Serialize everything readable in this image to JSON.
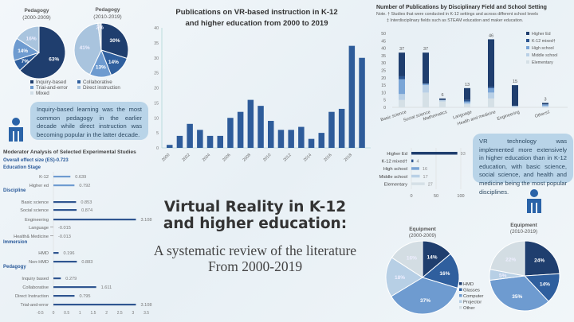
{
  "pedagogy": {
    "pie1": {
      "title": "Pedagogy",
      "period": "(2000-2009)",
      "values": [
        63,
        7,
        14,
        16,
        0
      ],
      "labels": [
        "63%",
        "7%",
        "14%",
        "16%",
        ""
      ]
    },
    "pie2": {
      "title": "Pedagogy",
      "period": "(2010-2019)",
      "values": [
        30,
        14,
        13,
        41,
        2
      ],
      "labels": [
        "30%",
        "14%",
        "13%",
        "41%",
        "2%"
      ]
    },
    "legend": [
      "Inquiry-based",
      "Collaborative",
      "Trial-and-error",
      "Direct instruction",
      "Mixed"
    ],
    "colors": [
      "#1f3e6e",
      "#2f5f9e",
      "#6e9bd0",
      "#a9c4de",
      "#d1dde6"
    ],
    "callout": "Inquiry-based learning was the most common pedagogy in the earlier decade while direct instruction was becoming popular in the latter decade."
  },
  "chart_data": [
    {
      "type": "bar",
      "title": "Publications on VR-based instruction in K-12 and higher education from 2000 to 2019",
      "title_lines": [
        "Publications  on VR-based instruction  in K-12",
        "and higher education from 2000 to 2019"
      ],
      "categories": [
        "2000",
        "2001",
        "2002",
        "2003",
        "2004",
        "2005",
        "2006",
        "2007",
        "2008",
        "2009",
        "2010",
        "2011",
        "2012",
        "2013",
        "2014",
        "2015",
        "2016",
        "2017",
        "2018",
        "2019"
      ],
      "tick_labels": [
        "2000",
        "2002",
        "2004",
        "2006",
        "2008",
        "2010",
        "2012",
        "2014",
        "2016",
        "2018"
      ],
      "values": [
        1,
        4,
        8,
        6,
        4,
        4,
        10,
        12,
        16,
        14,
        9,
        6,
        6,
        7,
        3,
        5,
        12,
        13,
        34,
        30
      ],
      "ylim": [
        0,
        40
      ],
      "yticks": [
        "0",
        "5",
        "10",
        "15",
        "20",
        "25",
        "30",
        "35",
        "40"
      ],
      "color": "#2e5c9a"
    },
    {
      "type": "bar",
      "stacked": true,
      "title": "Number of Publications by Disciplinary Field  and School Setting",
      "notes": [
        "Note. † Studies that were conducted in K-12 settings and across different school levels",
        "‡ Interdisciplinary fields such as STEAM education and maker education."
      ],
      "categories": [
        "Basic science",
        "Social science",
        "Mathematics",
        "Language",
        "Health and medicine",
        "Engineering",
        "Others‡"
      ],
      "totals": [
        "37",
        "37",
        "6",
        "13",
        "46",
        "15",
        "3"
      ],
      "series": [
        {
          "name": "Elementary",
          "values": [
            5,
            10,
            4,
            2,
            6,
            0,
            0
          ],
          "color": "#d5e0e6"
        },
        {
          "name": "Middle school",
          "values": [
            4,
            5,
            1,
            1,
            4,
            1,
            1
          ],
          "color": "#b9d0e6"
        },
        {
          "name": "High school",
          "values": [
            10,
            1,
            0,
            1,
            3,
            0,
            1
          ],
          "color": "#7aa5d6"
        },
        {
          "name": "K-12 mixed†",
          "values": [
            2,
            0,
            0,
            1,
            1,
            0,
            0
          ],
          "color": "#2c5590"
        },
        {
          "name": "Higher Ed",
          "values": [
            16,
            21,
            1,
            8,
            32,
            14,
            1
          ],
          "color": "#1f3e6e"
        }
      ],
      "legend_order": [
        "Higher Ed",
        "K-12 mixed†",
        "High school",
        "Middle school",
        "Elementary"
      ],
      "ylim": [
        0,
        50
      ],
      "yticks": [
        "0",
        "5",
        "10",
        "15",
        "20",
        "25",
        "30",
        "35",
        "40",
        "45",
        "50"
      ]
    },
    {
      "type": "bar",
      "orientation": "horizontal",
      "categories": [
        "Higher Ed",
        "K-12 mixed†",
        "High school",
        "Middle school",
        "Elementary"
      ],
      "values": [
        93,
        4,
        16,
        17,
        27
      ],
      "value_labels": [
        "93",
        "4",
        "16",
        "17",
        "27"
      ],
      "colors": [
        "#1f3e6e",
        "#2c5590",
        "#7aa5d6",
        "#b9d0e6",
        "#d5e0e6"
      ],
      "xlim": [
        0,
        100
      ],
      "xticks": [
        "0",
        "50",
        "100"
      ]
    },
    {
      "type": "bar",
      "orientation": "horizontal",
      "title": "Moderator Analysis of Selected Experimental Studies",
      "overall": "Overall effect size (ES)-0.723",
      "groups": [
        {
          "name": "Education  Stage",
          "items": [
            {
              "label": "K-12",
              "value": 0.639,
              "text": "0.639"
            },
            {
              "label": "Higher ed",
              "value": 0.792,
              "text": "0.792"
            }
          ]
        },
        {
          "name": "Discipline",
          "items": [
            {
              "label": "Basic science",
              "value": 0.853,
              "text": "0.853"
            },
            {
              "label": "Social science",
              "value": 0.874,
              "text": "0.874"
            },
            {
              "label": "Engineering",
              "value": 3.108,
              "text": "3.108"
            },
            {
              "label": "Language",
              "value": -0.015,
              "text": "-0.015"
            },
            {
              "label": "Health& Medicine",
              "value": -0.013,
              "text": "-0.013"
            }
          ]
        },
        {
          "name": "Immersion",
          "items": [
            {
              "label": "HMD",
              "value": 0.196,
              "text": "0.196"
            },
            {
              "label": "Non-HMD",
              "value": 0.883,
              "text": "0.883"
            }
          ]
        },
        {
          "name": "Pedagogy",
          "items": [
            {
              "label": "Inquiry based",
              "value": 0.279,
              "text": "0.279"
            },
            {
              "label": "Collaborative",
              "value": 1.611,
              "text": "1.611"
            },
            {
              "label": "Direct Instruction",
              "value": 0.795,
              "text": "0.795"
            },
            {
              "label": "Trial-and-error",
              "value": 3.108,
              "text": "3.108"
            }
          ]
        }
      ],
      "xlim": [
        -0.5,
        3.5
      ],
      "xticks": [
        "-0.5",
        "0",
        "0.5",
        "1",
        "1.5",
        "2",
        "2.5",
        "3",
        "3.5"
      ]
    },
    {
      "type": "pie",
      "title": "Equipment",
      "period": "(2000-2009)",
      "values": [
        14,
        16,
        37,
        18,
        16
      ],
      "labels": [
        "14%",
        "16%",
        "37%",
        "18%",
        "16%"
      ]
    },
    {
      "type": "pie",
      "title": "Equipment",
      "period": "(2010-2019)",
      "values": [
        24,
        14,
        35,
        5,
        22
      ],
      "labels": [
        "24%",
        "14%",
        "35%",
        "5%",
        "22%"
      ]
    }
  ],
  "equipment": {
    "legend": [
      "HMD",
      "Glasses",
      "Computer",
      "Projector",
      "Other"
    ],
    "colors": [
      "#1f3e6e",
      "#2f5f9e",
      "#6e9bd0",
      "#b7cfe5",
      "#d3dde3"
    ]
  },
  "right_callout": "VR technology was implemented more extensively in higher education than in K-12 education, with basic science, social science, and health and medicine being the most popular disciplines.",
  "main_title": [
    "Virtual Reality in K-12",
    "and higher education:"
  ],
  "subtitle": [
    "A systematic review of the literature",
    "From 2000-2019"
  ]
}
